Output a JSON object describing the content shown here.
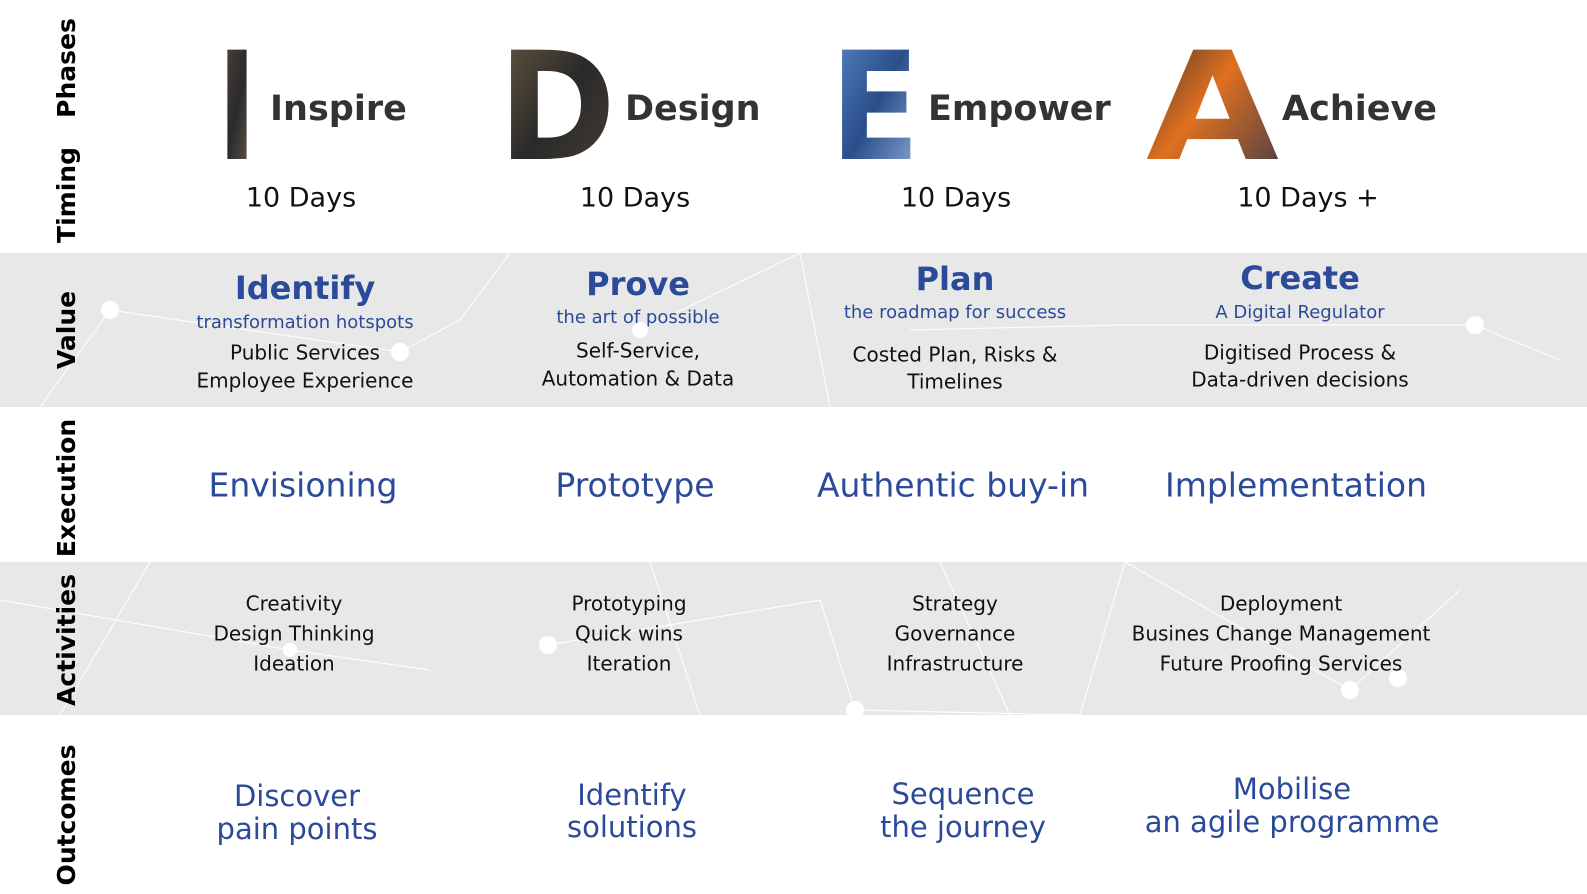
{
  "row_labels": [
    "Phases",
    "Timing",
    "Value",
    "Execution",
    "Activities",
    "Outcomes"
  ],
  "phases": [
    {
      "letter": "I",
      "word": "Inspire",
      "timing": "10 Days",
      "value": {
        "title": "Identify",
        "subtitle": "transformation hotspots",
        "lines": [
          "Public Services",
          "Employee Experience"
        ]
      },
      "execution": "Envisioning",
      "activities": [
        "Creativity",
        "Design Thinking",
        "Ideation"
      ],
      "outcomes": [
        "Discover",
        "pain points"
      ]
    },
    {
      "letter": "D",
      "word": "Design",
      "timing": "10 Days",
      "value": {
        "title": "Prove",
        "subtitle": "the art of possible",
        "lines": [
          "Self-Service,",
          "Automation & Data"
        ]
      },
      "execution": "Prototype",
      "activities": [
        "Prototyping",
        "Quick wins",
        "Iteration"
      ],
      "outcomes": [
        "Identify",
        "solutions"
      ]
    },
    {
      "letter": "E",
      "word": "Empower",
      "timing": "10 Days",
      "value": {
        "title": "Plan",
        "subtitle": "the roadmap for success",
        "lines": [
          "Costed Plan, Risks &",
          "Timelines"
        ]
      },
      "execution": "Authentic buy-in",
      "activities": [
        "Strategy",
        "Governance",
        "Infrastructure"
      ],
      "outcomes": [
        "Sequence",
        "the journey"
      ]
    },
    {
      "letter": "A",
      "word": "Achieve",
      "timing": "10 Days +",
      "value": {
        "title": "Create",
        "subtitle": "A Digital Regulator",
        "lines": [
          "Digitised Process &",
          "Data-driven decisions"
        ]
      },
      "execution": "Implementation",
      "activities": [
        "Deployment",
        "Busines Change Management",
        "Future Proofing Services"
      ],
      "outcomes": [
        "Mobilise",
        "an agile programme"
      ]
    }
  ]
}
